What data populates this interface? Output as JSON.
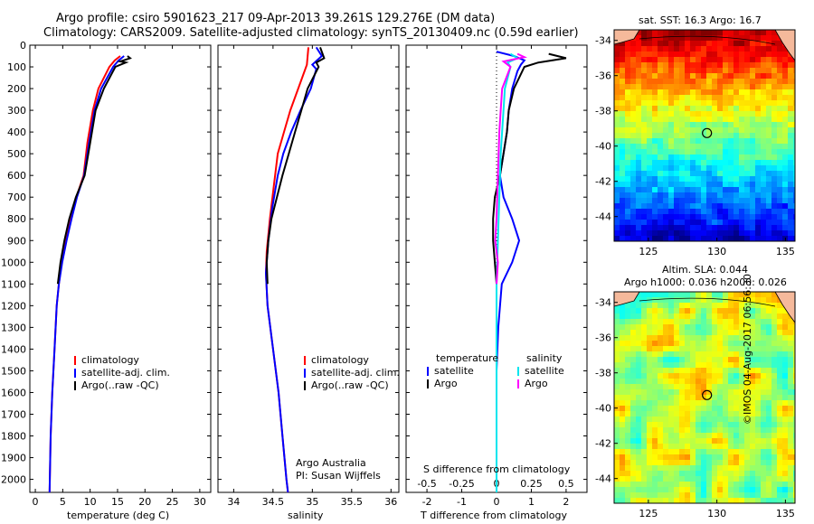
{
  "header": {
    "line1": "Argo profile: csiro 5901623_217 09-Apr-2013 39.261S 129.276E (DM data)",
    "line2": "Climatology: CARS2009. Satellite-adjusted climatology: synTS_20130409.nc (0.59d earlier)"
  },
  "footer": {
    "argo_australia": "Argo Australia",
    "pi": "PI: Susan Wijffels",
    "imos": "©IMOS 04-Aug-2017 06:56:30"
  },
  "colors": {
    "climatology": "#ff0000",
    "satellite": "#0000ff",
    "argo": "#000000",
    "salinity_satellite": "#00e5ee",
    "salinity_argo": "#ff00ff",
    "land": "#f5b99b"
  },
  "depth_axis": {
    "ticks": [
      0,
      100,
      200,
      300,
      400,
      500,
      600,
      700,
      800,
      900,
      1000,
      1100,
      1200,
      1300,
      1400,
      1500,
      1600,
      1700,
      1800,
      1900,
      2000
    ],
    "max": 2060
  },
  "chart_data": [
    {
      "type": "line",
      "id": "temperature",
      "xlabel": "temperature (deg C)",
      "xlim": [
        -1,
        32
      ],
      "xticks": [
        0,
        5,
        10,
        15,
        20,
        25,
        30
      ],
      "legend": [
        "climatology",
        "satellite-adj. clim.",
        "Argo(..raw -QC)"
      ],
      "series": [
        {
          "name": "climatology",
          "color": "#ff0000",
          "points": [
            [
              15.5,
              50
            ],
            [
              14.5,
              70
            ],
            [
              13.5,
              100
            ],
            [
              11.5,
              200
            ],
            [
              10.5,
              300
            ],
            [
              9.5,
              450
            ],
            [
              8.8,
              600
            ],
            [
              7.5,
              700
            ],
            [
              6.5,
              800
            ],
            [
              5.6,
              900
            ],
            [
              4.8,
              1000
            ],
            [
              4.3,
              1100
            ],
            [
              3.9,
              1200
            ],
            [
              3.5,
              1400
            ],
            [
              3.1,
              1600
            ],
            [
              2.8,
              1800
            ],
            [
              2.6,
              2060
            ]
          ]
        },
        {
          "name": "satellite-adj. clim.",
          "color": "#0000ff",
          "points": [
            [
              16.2,
              50
            ],
            [
              15.2,
              70
            ],
            [
              14.2,
              100
            ],
            [
              12.0,
              200
            ],
            [
              10.8,
              300
            ],
            [
              9.8,
              450
            ],
            [
              8.9,
              600
            ],
            [
              7.6,
              700
            ],
            [
              6.6,
              800
            ],
            [
              5.7,
              900
            ],
            [
              4.9,
              1000
            ],
            [
              4.3,
              1100
            ],
            [
              3.9,
              1200
            ],
            [
              3.5,
              1400
            ],
            [
              3.1,
              1600
            ],
            [
              2.8,
              1800
            ],
            [
              2.6,
              2060
            ]
          ]
        },
        {
          "name": "Argo(..raw -QC)",
          "color": "#000000",
          "points": [
            [
              16.8,
              50
            ],
            [
              17.3,
              60
            ],
            [
              15.5,
              75
            ],
            [
              16.5,
              80
            ],
            [
              14.6,
              100
            ],
            [
              12.5,
              200
            ],
            [
              11.0,
              300
            ],
            [
              10.0,
              450
            ],
            [
              9.0,
              600
            ],
            [
              7.4,
              700
            ],
            [
              6.2,
              800
            ],
            [
              5.3,
              900
            ],
            [
              4.6,
              1000
            ],
            [
              4.1,
              1100
            ]
          ]
        }
      ]
    },
    {
      "type": "line",
      "id": "salinity",
      "xlabel": "salinity",
      "xlim": [
        33.8,
        36.1
      ],
      "xticks": [
        34,
        34.5,
        35,
        35.5,
        36
      ],
      "xticklabels": [
        "34",
        "34.5",
        "35",
        "35.5",
        "36"
      ],
      "legend": [
        "climatology",
        "satellite-adj. clim.",
        "Argo(..raw -QC)"
      ],
      "series": [
        {
          "name": "climatology",
          "color": "#ff0000",
          "points": [
            [
              34.95,
              10
            ],
            [
              34.93,
              90
            ],
            [
              34.82,
              200
            ],
            [
              34.72,
              300
            ],
            [
              34.64,
              400
            ],
            [
              34.56,
              500
            ],
            [
              34.51,
              650
            ],
            [
              34.46,
              800
            ],
            [
              34.42,
              950
            ],
            [
              34.41,
              1050
            ],
            [
              34.43,
              1200
            ],
            [
              34.5,
              1400
            ],
            [
              34.57,
              1600
            ],
            [
              34.62,
              1800
            ],
            [
              34.67,
              2000
            ],
            [
              34.69,
              2060
            ]
          ]
        },
        {
          "name": "satellite-adj. clim.",
          "color": "#0000ff",
          "points": [
            [
              35.05,
              10
            ],
            [
              35.12,
              50
            ],
            [
              35.0,
              90
            ],
            [
              35.05,
              110
            ],
            [
              34.98,
              200
            ],
            [
              34.85,
              300
            ],
            [
              34.73,
              400
            ],
            [
              34.63,
              500
            ],
            [
              34.56,
              600
            ],
            [
              34.49,
              750
            ],
            [
              34.44,
              900
            ],
            [
              34.41,
              1050
            ],
            [
              34.43,
              1200
            ],
            [
              34.5,
              1400
            ],
            [
              34.57,
              1600
            ],
            [
              34.62,
              1800
            ],
            [
              34.67,
              2000
            ],
            [
              34.69,
              2060
            ]
          ]
        },
        {
          "name": "Argo(..raw -QC)",
          "color": "#000000",
          "points": [
            [
              35.1,
              10
            ],
            [
              35.15,
              60
            ],
            [
              35.05,
              80
            ],
            [
              35.08,
              100
            ],
            [
              34.94,
              200
            ],
            [
              34.86,
              300
            ],
            [
              34.78,
              400
            ],
            [
              34.7,
              500
            ],
            [
              34.62,
              600
            ],
            [
              34.55,
              700
            ],
            [
              34.48,
              800
            ],
            [
              34.44,
              900
            ],
            [
              34.42,
              1000
            ],
            [
              34.43,
              1100
            ]
          ]
        }
      ]
    },
    {
      "type": "line",
      "id": "difference",
      "xlabel": "T difference from climatology",
      "xlabel2": "S difference from climatology",
      "xlim": [
        -2.6,
        2.6
      ],
      "xticks": [
        -2,
        -1,
        0,
        1,
        2
      ],
      "sticks": [
        -0.5,
        -0.25,
        0,
        0.25,
        0.5
      ],
      "s_scale": 4,
      "legend_titles": [
        "temperature",
        "salinity"
      ],
      "legend_entries": [
        "satellite",
        "Argo"
      ],
      "series": [
        {
          "name": "satellite",
          "group": "temperature",
          "color": "#0000ff",
          "kind": "T",
          "points": [
            [
              0,
              30
            ],
            [
              0.5,
              50
            ],
            [
              0.8,
              70
            ],
            [
              0.7,
              90
            ],
            [
              0.6,
              120
            ],
            [
              0.45,
              200
            ],
            [
              0.35,
              300
            ],
            [
              0.3,
              400
            ],
            [
              0.2,
              500
            ],
            [
              0.1,
              600
            ],
            [
              0.2,
              700
            ],
            [
              0.45,
              800
            ],
            [
              0.65,
              900
            ],
            [
              0.45,
              1000
            ],
            [
              0.15,
              1100
            ],
            [
              0.05,
              1300
            ],
            [
              0,
              1500
            ],
            [
              0,
              2060
            ]
          ]
        },
        {
          "name": "Argo",
          "group": "temperature",
          "color": "#000000",
          "kind": "T",
          "points": [
            [
              1.5,
              40
            ],
            [
              2.0,
              60
            ],
            [
              1.2,
              80
            ],
            [
              0.8,
              100
            ],
            [
              0.5,
              200
            ],
            [
              0.35,
              300
            ],
            [
              0.3,
              400
            ],
            [
              0.2,
              500
            ],
            [
              0.1,
              600
            ],
            [
              -0.05,
              700
            ],
            [
              -0.1,
              800
            ],
            [
              -0.1,
              900
            ],
            [
              -0.05,
              1000
            ],
            [
              0,
              1100
            ]
          ]
        },
        {
          "name": "satellite",
          "group": "salinity",
          "color": "#00e5ee",
          "kind": "S",
          "points": [
            [
              0.1,
              40
            ],
            [
              0.15,
              60
            ],
            [
              0.08,
              80
            ],
            [
              0.1,
              100
            ],
            [
              0.06,
              200
            ],
            [
              0.05,
              300
            ],
            [
              0.03,
              500
            ],
            [
              0.02,
              700
            ],
            [
              0.01,
              900
            ],
            [
              0,
              1100
            ],
            [
              0,
              1300
            ],
            [
              0,
              2060
            ]
          ]
        },
        {
          "name": "Argo",
          "group": "salinity",
          "color": "#ff00ff",
          "kind": "S",
          "points": [
            [
              0.15,
              40
            ],
            [
              0.2,
              55
            ],
            [
              0.05,
              75
            ],
            [
              0.1,
              100
            ],
            [
              0.04,
              200
            ],
            [
              0.03,
              300
            ],
            [
              0.02,
              400
            ],
            [
              0.01,
              600
            ],
            [
              0,
              800
            ],
            [
              -0.01,
              900
            ],
            [
              0.01,
              1000
            ],
            [
              0,
              1100
            ]
          ]
        }
      ]
    },
    {
      "type": "heatmap",
      "id": "sst_map",
      "title": "sat. SST: 16.3 Argo: 16.7",
      "xlim": [
        122.5,
        135.7
      ],
      "ylim": [
        -45.4,
        -33.4
      ],
      "xticks": [
        125,
        130,
        135
      ],
      "yticks": [
        -34,
        -36,
        -38,
        -40,
        -42,
        -44
      ],
      "marker": [
        129.276,
        -39.261
      ]
    },
    {
      "type": "heatmap",
      "id": "sla_map",
      "title": "Altim. SLA: 0.044",
      "title2": "Argo h1000: 0.036 h2000: 0.026",
      "xlim": [
        122.5,
        135.7
      ],
      "ylim": [
        -45.4,
        -33.4
      ],
      "xticks": [
        125,
        130,
        135
      ],
      "yticks": [
        -34,
        -36,
        -38,
        -40,
        -42,
        -44
      ],
      "marker": [
        129.276,
        -39.261
      ]
    }
  ]
}
